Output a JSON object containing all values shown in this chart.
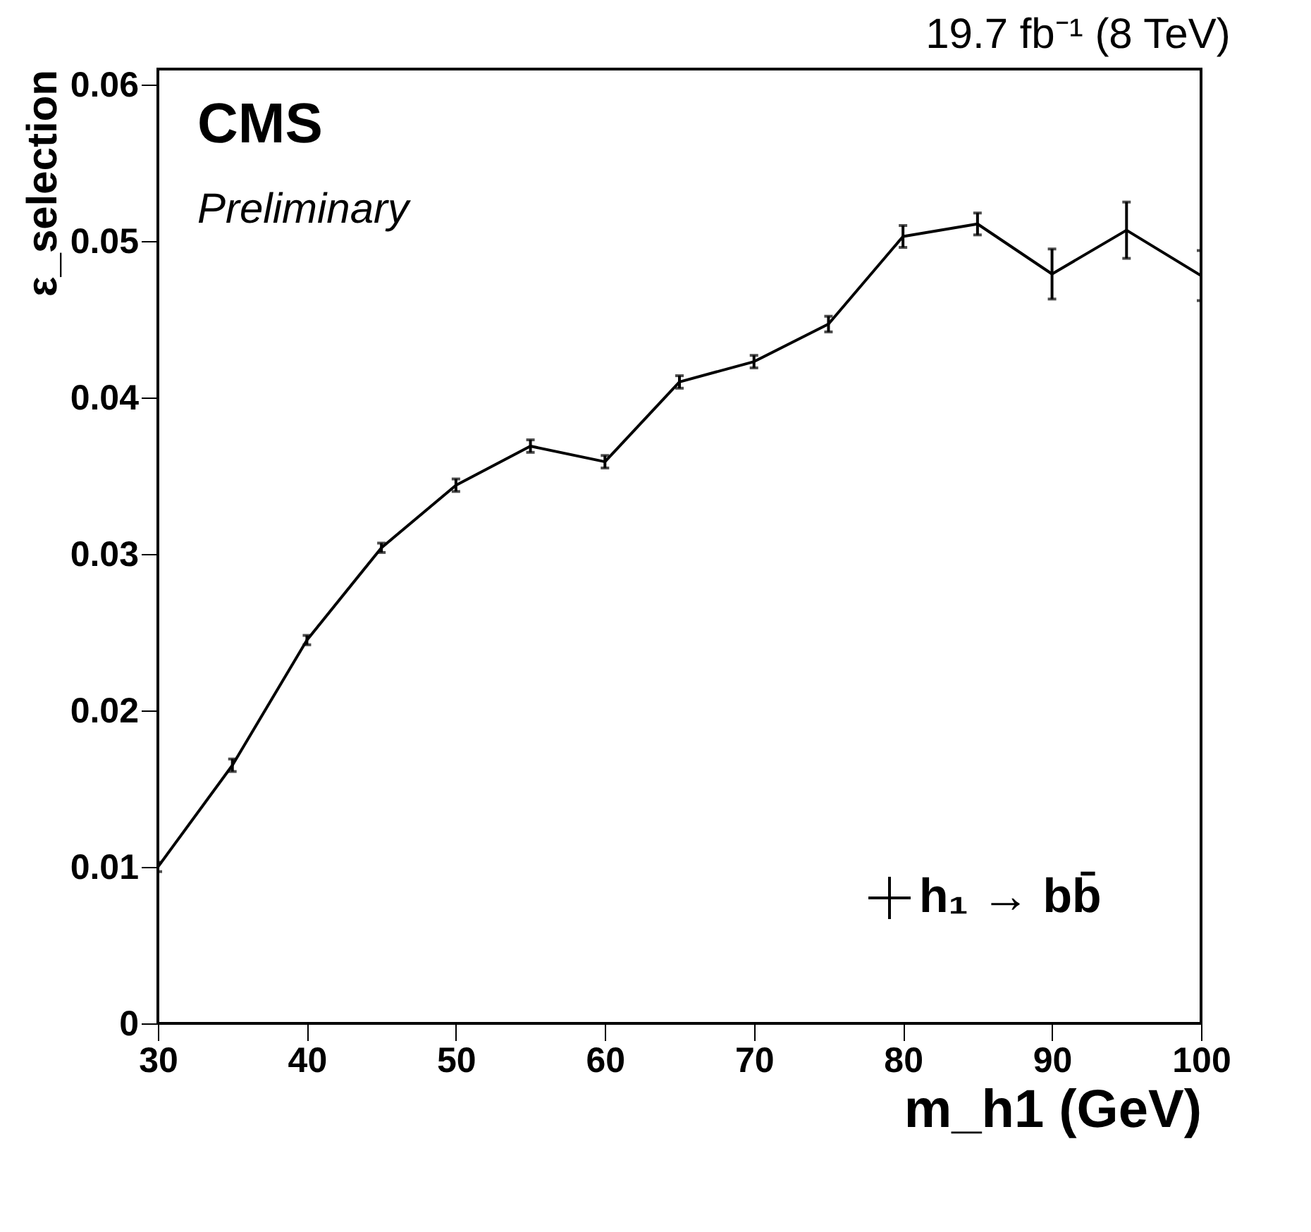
{
  "chart_data": {
    "type": "line",
    "title": "19.7 fb⁻¹ (8 TeV)",
    "xlabel": "m_h1 (GeV)",
    "ylabel": "ε_selection",
    "annotations": [
      "CMS",
      "Preliminary"
    ],
    "x": [
      30,
      35,
      40,
      45,
      50,
      55,
      60,
      65,
      70,
      75,
      80,
      85,
      90,
      95,
      100
    ],
    "series": [
      {
        "name": "h₁ → bb̄",
        "color": "#000000",
        "values": [
          0.01,
          0.0165,
          0.0245,
          0.0304,
          0.0344,
          0.0369,
          0.0359,
          0.041,
          0.0423,
          0.0447,
          0.0503,
          0.0511,
          0.0479,
          0.0507,
          0.0478
        ],
        "errors": [
          0.0003,
          0.0004,
          0.0003,
          0.0003,
          0.0004,
          0.0004,
          0.0004,
          0.0004,
          0.0004,
          0.0005,
          0.0007,
          0.0007,
          0.0016,
          0.0018,
          0.0016
        ]
      }
    ],
    "xlim": [
      30,
      100
    ],
    "ylim": [
      0,
      0.061
    ],
    "xticks": [
      30,
      40,
      50,
      60,
      70,
      80,
      90,
      100
    ],
    "yticks": [
      0,
      0.01,
      0.02,
      0.03,
      0.04,
      0.05,
      0.06
    ],
    "grid": false,
    "legend": "bottom right",
    "marker": "none",
    "line_style": "solid"
  }
}
